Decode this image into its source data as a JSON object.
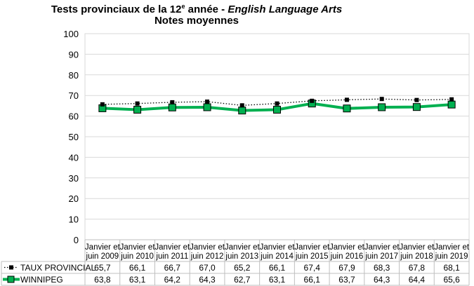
{
  "chart_data": {
    "type": "line",
    "title_main": "Tests provinciaux de la 12",
    "title_sup": "e",
    "title_mid": " année - ",
    "title_italic": "English Language Arts",
    "subtitle": "Notes moyennes",
    "ylim": [
      0,
      100
    ],
    "yticks": [
      "0",
      "10",
      "20",
      "30",
      "40",
      "50",
      "60",
      "70",
      "80",
      "90",
      "100"
    ],
    "grid": true,
    "legend_placement": "data-table",
    "categories": [
      [
        "Janvier et",
        "juin 2009"
      ],
      [
        "Janvier et",
        "juin 2010"
      ],
      [
        "Janvier et",
        "juin 2011"
      ],
      [
        "Janvier et",
        "juin 2012"
      ],
      [
        "Janvier et",
        "juin 2013"
      ],
      [
        "Janvier et",
        "juin 2014"
      ],
      [
        "Janvier et",
        "juin 2015"
      ],
      [
        "Janvier et",
        "juin 2016"
      ],
      [
        "Janvier et",
        "juin 2017"
      ],
      [
        "Janvier et",
        "juin 2018"
      ],
      [
        "Janvier et",
        "juin 2019"
      ]
    ],
    "series": [
      {
        "name": "TAUX PROVINCIAL",
        "values": [
          65.7,
          66.1,
          66.7,
          67.0,
          65.2,
          66.1,
          67.4,
          67.9,
          68.3,
          67.8,
          68.1
        ],
        "labels": [
          "65,7",
          "66,1",
          "66,7",
          "67,0",
          "65,2",
          "66,1",
          "67,4",
          "67,9",
          "68,3",
          "67,8",
          "68,1"
        ],
        "color": "#000000",
        "style": "dotted"
      },
      {
        "name": "WINNIPEG",
        "values": [
          63.8,
          63.1,
          64.2,
          64.3,
          62.7,
          63.1,
          66.1,
          63.7,
          64.3,
          64.4,
          65.6
        ],
        "labels": [
          "63,8",
          "63,1",
          "64,2",
          "64,3",
          "62,7",
          "63,1",
          "66,1",
          "63,7",
          "64,3",
          "64,4",
          "65,6"
        ],
        "color": "#00B050",
        "style": "solid"
      }
    ]
  }
}
